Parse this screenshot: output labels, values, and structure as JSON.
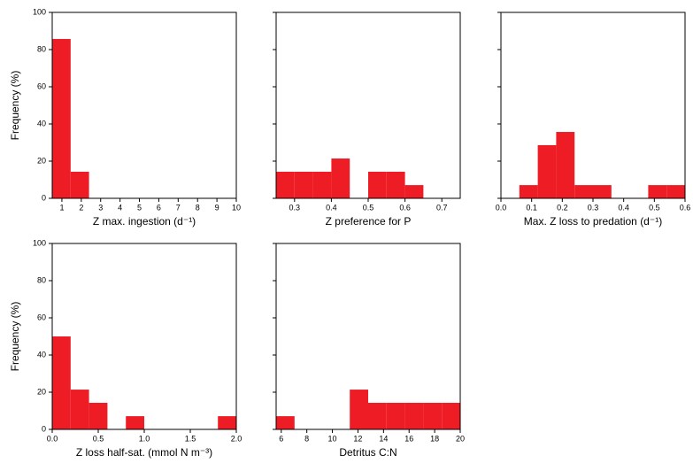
{
  "chart_data": [
    {
      "type": "histogram",
      "xlabel": "Z max. ingestion (d⁻¹)",
      "ylabel": "Frequency (%)",
      "color": "#ee1c24",
      "bins": [
        0.5,
        1.45,
        2.4,
        3.35,
        4.3,
        5.25,
        6.2,
        7.15,
        8.1,
        9.05,
        10
      ],
      "values": [
        85.7,
        14.3,
        0,
        0,
        0,
        0,
        0,
        0,
        0,
        0
      ],
      "xlim": [
        0.5,
        10
      ],
      "xticks": [
        1,
        2,
        3,
        4,
        5,
        6,
        7,
        8,
        9,
        10
      ],
      "ylim": [
        0,
        100
      ],
      "yticks": [
        0,
        20,
        40,
        60,
        80,
        100
      ]
    },
    {
      "type": "histogram",
      "xlabel": "Z preference for P",
      "color": "#ee1c24",
      "bins": [
        0.25,
        0.3,
        0.35,
        0.4,
        0.45,
        0.5,
        0.55,
        0.6,
        0.65,
        0.7,
        0.75
      ],
      "values": [
        14.3,
        14.3,
        14.3,
        21.4,
        0,
        14.3,
        14.3,
        7.1,
        0,
        0
      ],
      "xlim": [
        0.25,
        0.75
      ],
      "xticks": [
        0.3,
        0.4,
        0.5,
        0.6,
        0.7
      ],
      "ylim": [
        0,
        100
      ],
      "yticks": [
        0,
        20,
        40,
        60,
        80,
        100
      ]
    },
    {
      "type": "histogram",
      "xlabel": "Max. Z loss to predation (d⁻¹)",
      "color": "#ee1c24",
      "bins": [
        0,
        0.06,
        0.12,
        0.18,
        0.24,
        0.3,
        0.36,
        0.42,
        0.48,
        0.54,
        0.6
      ],
      "values": [
        0,
        7.1,
        28.6,
        35.7,
        7.1,
        7.1,
        0,
        0,
        7.1,
        7.1
      ],
      "xlim": [
        0,
        0.6
      ],
      "xticks": [
        {
          "value": 0,
          "label": "0.0"
        },
        0.1,
        0.2,
        0.3,
        0.4,
        0.5,
        0.6
      ],
      "ylim": [
        0,
        100
      ],
      "yticks": [
        0,
        20,
        40,
        60,
        80,
        100
      ]
    },
    {
      "type": "histogram",
      "xlabel": "Z loss half-sat. (mmol N m⁻³)",
      "ylabel": "Frequency (%)",
      "color": "#ee1c24",
      "bins": [
        0,
        0.2,
        0.4,
        0.6,
        0.8,
        1,
        1.2,
        1.4,
        1.6,
        1.8,
        2
      ],
      "values": [
        50,
        21.4,
        14.3,
        0,
        7.1,
        0,
        0,
        0,
        0,
        7.1
      ],
      "xlim": [
        0,
        2
      ],
      "xticks": [
        {
          "value": 0,
          "label": "0.0"
        },
        0.5,
        {
          "value": 1,
          "label": "1.0"
        },
        1.5,
        {
          "value": 2,
          "label": "2.0"
        }
      ],
      "ylim": [
        0,
        100
      ],
      "yticks": [
        0,
        20,
        40,
        60,
        80,
        100
      ]
    },
    {
      "type": "histogram",
      "xlabel": "Detritus C:N",
      "color": "#ee1c24",
      "bins": [
        5.6,
        7.04,
        8.48,
        9.92,
        11.36,
        12.8,
        14.24,
        15.68,
        17.12,
        18.56,
        20
      ],
      "values": [
        7.1,
        0,
        0,
        0,
        21.4,
        14.3,
        14.3,
        14.3,
        14.3,
        14.3
      ],
      "xlim": [
        5.6,
        20
      ],
      "xticks": [
        6,
        8,
        10,
        12,
        14,
        16,
        18,
        20
      ],
      "ylim": [
        0,
        100
      ],
      "yticks": [
        0,
        20,
        40,
        60,
        80,
        100
      ]
    }
  ]
}
